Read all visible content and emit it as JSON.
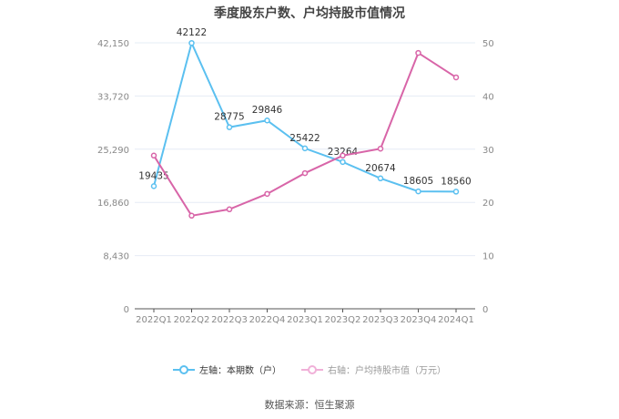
{
  "chart_data": {
    "type": "line",
    "title": "季度股东户数、户均持股市值情况",
    "categories": [
      "2022Q1",
      "2022Q2",
      "2022Q3",
      "2022Q4",
      "2023Q1",
      "2023Q2",
      "2023Q3",
      "2023Q4",
      "2024Q1"
    ],
    "series": [
      {
        "name": "左轴：本期数（户）",
        "axis": "left",
        "color": "#5bc0f0",
        "values": [
          19435,
          42122,
          28775,
          29846,
          25422,
          23264,
          20674,
          18605,
          18560
        ]
      },
      {
        "name": "右轴：户均持股市值（万元）",
        "axis": "right",
        "color": "#d865a8",
        "values": [
          28.8,
          17.5,
          18.7,
          21.6,
          25.5,
          28.8,
          30.1,
          48.1,
          43.5
        ]
      }
    ],
    "left_axis": {
      "ticks": [
        "0",
        "8,430",
        "16,860",
        "25,290",
        "33,720",
        "42,150"
      ],
      "range": [
        0,
        42150
      ]
    },
    "right_axis": {
      "ticks": [
        "0",
        "10",
        "20",
        "30",
        "40",
        "50"
      ],
      "range": [
        0,
        50
      ]
    },
    "grid": true,
    "legend_position": "bottom"
  },
  "legend": {
    "left_label": "左轴：本期数（户）",
    "right_label": "右轴：户均持股市值（万元）"
  },
  "source": "数据来源：恒生聚源"
}
